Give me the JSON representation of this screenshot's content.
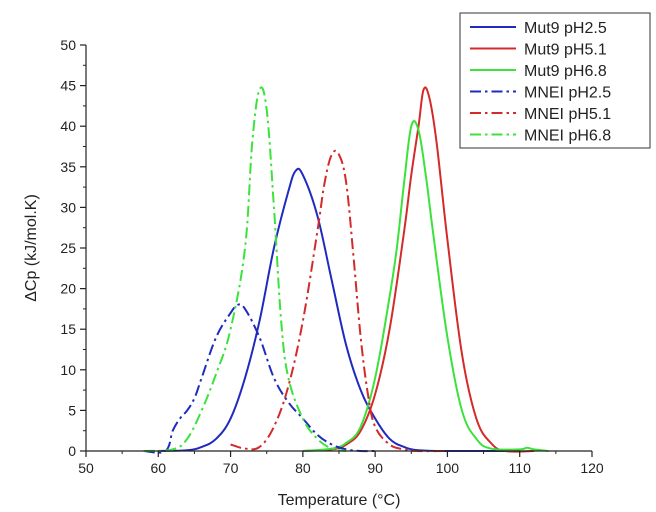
{
  "chart_data": {
    "type": "line",
    "title": "",
    "xlabel": "Temperature (°C)",
    "ylabel": "ΔCp  (kJ/mol.K)",
    "xlim": [
      50,
      120
    ],
    "ylim": [
      0,
      50
    ],
    "xticks": [
      50,
      60,
      70,
      80,
      90,
      100,
      110,
      120
    ],
    "yticks": [
      0,
      5,
      10,
      15,
      20,
      25,
      30,
      35,
      40,
      45,
      50
    ],
    "grid": false,
    "legend_position": "top-right",
    "series": [
      {
        "name": "Mut9 pH2.5",
        "color": "#1f2bbf",
        "dash": "solid",
        "x": [
          60,
          64,
          66,
          68,
          70,
          72,
          74,
          76,
          78,
          79,
          80,
          82,
          84,
          86,
          88,
          90,
          92,
          94,
          96,
          100,
          110
        ],
        "y": [
          0,
          0.1,
          0.5,
          1.5,
          4,
          9,
          16,
          25,
          32,
          34.5,
          34,
          29,
          21,
          13,
          7.5,
          4,
          1.5,
          0.5,
          0.1,
          0,
          0
        ]
      },
      {
        "name": "Mut9 pH5.1",
        "color": "#d42a2a",
        "dash": "solid",
        "x": [
          80,
          84,
          86,
          88,
          90,
          92,
          94,
          95,
          96,
          96.7,
          97.5,
          98.5,
          100,
          102,
          104,
          106,
          108,
          112
        ],
        "y": [
          0,
          0.2,
          0.8,
          2.5,
          7,
          15,
          27,
          34,
          40,
          44.5,
          43.5,
          38,
          26,
          12,
          4,
          1,
          0,
          0
        ]
      },
      {
        "name": "Mut9 pH6.8",
        "color": "#3ce23c",
        "dash": "solid",
        "x": [
          80,
          84,
          86,
          88,
          90,
          92,
          93,
          94,
          95,
          96,
          97,
          98,
          100,
          102,
          104,
          106,
          110,
          111,
          112,
          114
        ],
        "y": [
          0,
          0.3,
          1,
          3,
          9,
          19,
          25,
          33,
          40,
          39.5,
          34,
          27,
          14,
          5,
          1.5,
          0.3,
          0.2,
          0.4,
          0.2,
          0
        ]
      },
      {
        "name": "MNEI pH2.5",
        "color": "#1f2bbf",
        "dash": "dashdot",
        "x": [
          58,
          61,
          62,
          63,
          64,
          65,
          66,
          68,
          70,
          71,
          72,
          74,
          76,
          78,
          80,
          82,
          84,
          86,
          88,
          90
        ],
        "y": [
          0,
          0,
          2.5,
          4,
          5,
          6.5,
          9,
          14,
          17,
          18,
          17.5,
          14,
          9,
          6,
          4,
          2,
          0.8,
          0.2,
          0,
          0
        ]
      },
      {
        "name": "MNEI pH5.1",
        "color": "#d42a2a",
        "dash": "dashdot",
        "x": [
          70,
          72,
          74,
          76,
          78,
          80,
          82,
          83,
          84,
          85,
          86,
          87,
          88,
          89,
          90,
          92,
          94,
          96,
          100
        ],
        "y": [
          0.8,
          0.3,
          0.5,
          3,
          8,
          16,
          27,
          33,
          36.5,
          36.5,
          33,
          24,
          14,
          7,
          3,
          0.8,
          0.2,
          0,
          0
        ]
      },
      {
        "name": "MNEI pH6.8",
        "color": "#3ce23c",
        "dash": "dashdot",
        "x": [
          58,
          62,
          64,
          66,
          68,
          70,
          72,
          73,
          74,
          75,
          76,
          77,
          78,
          80,
          82,
          84,
          86
        ],
        "y": [
          0,
          0.2,
          1.5,
          5,
          9.5,
          15,
          25,
          38,
          44.5,
          42,
          30,
          16,
          9,
          4,
          1.5,
          0.3,
          0
        ]
      }
    ]
  }
}
